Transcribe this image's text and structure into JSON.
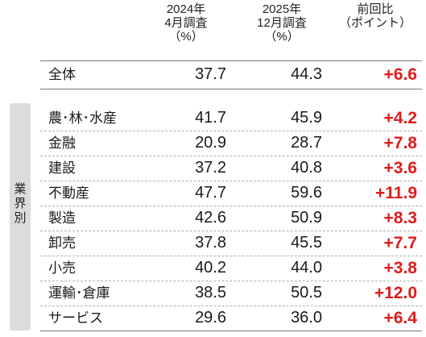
{
  "headers": {
    "col1": [
      "2024年",
      "4月調査",
      "（%）"
    ],
    "col2": [
      "2025年",
      "12月調査",
      "（%）"
    ],
    "col3": [
      "前回比",
      "（ポイント）"
    ]
  },
  "overall": {
    "category": "全体",
    "v2024": "37.7",
    "v2025": "44.3",
    "diff": "+6.6"
  },
  "sidebar_label": "業界別",
  "industries": [
    {
      "category": "農･林･水産",
      "v2024": "41.7",
      "v2025": "45.9",
      "diff": "+4.2"
    },
    {
      "category": "金融",
      "v2024": "20.9",
      "v2025": "28.7",
      "diff": "+7.8"
    },
    {
      "category": "建設",
      "v2024": "37.2",
      "v2025": "40.8",
      "diff": "+3.6"
    },
    {
      "category": "不動産",
      "v2024": "47.7",
      "v2025": "59.6",
      "diff": "+11.9"
    },
    {
      "category": "製造",
      "v2024": "42.6",
      "v2025": "50.9",
      "diff": "+8.3"
    },
    {
      "category": "卸売",
      "v2024": "37.8",
      "v2025": "45.5",
      "diff": "+7.7"
    },
    {
      "category": "小売",
      "v2024": "40.2",
      "v2025": "44.0",
      "diff": "+3.8"
    },
    {
      "category": "運輸･倉庫",
      "v2024": "38.5",
      "v2025": "50.5",
      "diff": "+12.0"
    },
    {
      "category": "サービス",
      "v2024": "29.6",
      "v2025": "36.0",
      "diff": "+6.4"
    }
  ],
  "colors": {
    "increase": "#e01c1c",
    "sidebar": "#dcdcdc"
  }
}
